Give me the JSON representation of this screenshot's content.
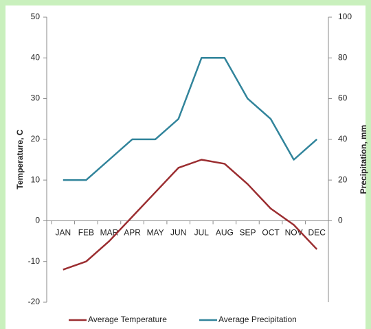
{
  "chart_data": {
    "type": "line",
    "categories": [
      "JAN",
      "FEB",
      "MAR",
      "APR",
      "MAY",
      "JUN",
      "JUL",
      "AUG",
      "SEP",
      "OCT",
      "NOV",
      "DEC"
    ],
    "ylabel": "Temperature, C",
    "y2label": "Precipitation, mm",
    "ylim": [
      -20,
      50
    ],
    "yticks": [
      -20,
      -10,
      0,
      10,
      20,
      30,
      40,
      50
    ],
    "y2lim": [
      -40,
      100
    ],
    "y2ticks": [
      0,
      20,
      40,
      60,
      80,
      100
    ],
    "legend": "bottom",
    "series": [
      {
        "name": "Average Temperature",
        "color": "#9b2d30",
        "values": [
          -12,
          -10,
          -5,
          1,
          7,
          13,
          15,
          14,
          9,
          3,
          -1,
          -7
        ]
      },
      {
        "name": "Average Precipitation",
        "color": "#31849b",
        "axis": "y2",
        "values": [
          20,
          20,
          30,
          40,
          40,
          50,
          80,
          80,
          60,
          50,
          30,
          40
        ]
      }
    ]
  }
}
